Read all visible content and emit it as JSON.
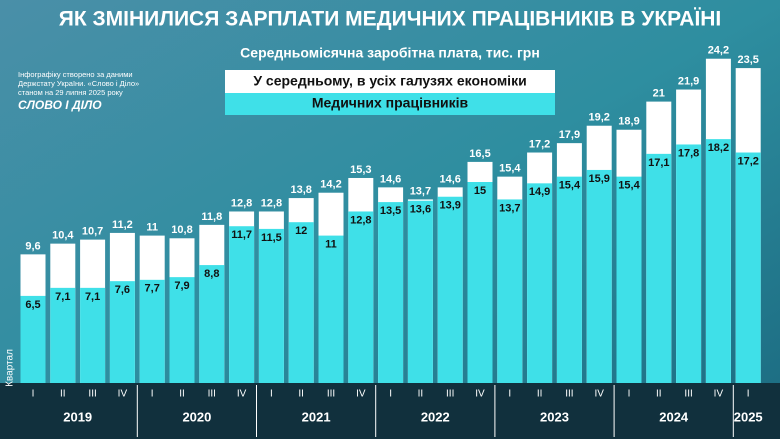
{
  "chart_data": {
    "type": "bar",
    "title": "ЯК ЗМІНИЛИСЯ ЗАРПЛАТИ МЕДИЧНИХ ПРАЦІВНИКІВ В УКРАЇНІ",
    "subtitle": "Середньомісячна заробітна плата, тис. грн",
    "source": [
      "Інфографіку створено за даними",
      "Держстату України. «Слово і Діло»",
      "станом на 29 липня 2025 року"
    ],
    "logo": "СЛОВО І ДІЛО",
    "x_label": "Квартал",
    "categories": [
      "I",
      "II",
      "III",
      "IV",
      "I",
      "II",
      "III",
      "IV",
      "I",
      "II",
      "III",
      "IV",
      "I",
      "II",
      "III",
      "IV",
      "I",
      "II",
      "III",
      "IV",
      "I",
      "II",
      "III",
      "IV",
      "I"
    ],
    "years": [
      "2019",
      "2020",
      "2021",
      "2022",
      "2023",
      "2024",
      "2025"
    ],
    "series": [
      {
        "name": "У середньому, в усіх галузях економіки",
        "color": "#ffffff",
        "values": [
          9.6,
          10.4,
          10.7,
          11.2,
          11,
          10.8,
          11.8,
          12.8,
          12.8,
          13.8,
          14.2,
          15.3,
          14.6,
          13.7,
          14.6,
          16.5,
          15.4,
          17.2,
          17.9,
          19.2,
          18.9,
          21,
          21.9,
          24.2,
          23.5
        ],
        "value_labels": [
          "9,6",
          "10,4",
          "10,7",
          "11,2",
          "11",
          "10,8",
          "11,8",
          "12,8",
          "12,8",
          "13,8",
          "14,2",
          "15,3",
          "14,6",
          "13,7",
          "14,6",
          "16,5",
          "15,4",
          "17,2",
          "17,9",
          "19,2",
          "18,9",
          "21",
          "21,9",
          "24,2",
          "23,5"
        ]
      },
      {
        "name": "Медичних працівників",
        "color": "#3fe0e8",
        "values": [
          6.5,
          7.1,
          7.1,
          7.6,
          7.7,
          7.9,
          8.8,
          11.7,
          11.5,
          12,
          11,
          12.8,
          13.5,
          13.6,
          13.9,
          15,
          13.7,
          14.9,
          15.4,
          15.9,
          15.4,
          17.1,
          17.8,
          18.2,
          17.2
        ],
        "value_labels": [
          "6,5",
          "7,1",
          "7,1",
          "7,6",
          "7,7",
          "7,9",
          "8,8",
          "11,7",
          "11,5",
          "12",
          "11",
          "12,8",
          "13,5",
          "13,6",
          "13,9",
          "15",
          "13,7",
          "14,9",
          "15,4",
          "15,9",
          "15,4",
          "17,1",
          "17,8",
          "18,2",
          "17,2"
        ]
      }
    ]
  }
}
